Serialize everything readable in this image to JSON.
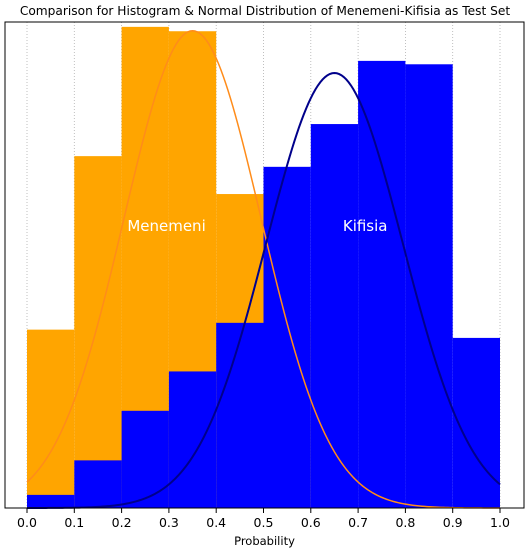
{
  "chart_data": {
    "type": "bar",
    "title": "Comparison for Histogram & Normal Distribution of Menemeni-Kifisia as Test Set",
    "xlabel": "Probability",
    "ylabel": "",
    "xlim": [
      0.0,
      1.0
    ],
    "ylim": [
      0,
      1.0
    ],
    "xticks": [
      "0.0",
      "0.1",
      "0.2",
      "0.3",
      "0.4",
      "0.5",
      "0.6",
      "0.7",
      "0.8",
      "0.9",
      "1.0"
    ],
    "grid": "vertical dotted",
    "bins": [
      [
        0.0,
        0.1
      ],
      [
        0.1,
        0.2
      ],
      [
        0.2,
        0.3
      ],
      [
        0.3,
        0.4
      ],
      [
        0.4,
        0.5
      ],
      [
        0.5,
        0.6
      ],
      [
        0.6,
        0.7
      ],
      [
        0.7,
        0.8
      ],
      [
        0.8,
        0.9
      ],
      [
        0.9,
        1.0
      ]
    ],
    "series": [
      {
        "name": "Menemeni",
        "color": "#FFA500",
        "values": [
          0.367,
          0.724,
          0.99,
          0.981,
          0.646,
          0.383,
          0.0,
          0.0,
          0.0,
          0.0
        ],
        "normal_fit": {
          "mean": 0.35,
          "std": 0.145,
          "peak": 0.982,
          "color": "#FF8C1A"
        }
      },
      {
        "name": "Kifisia",
        "color": "#0000FF",
        "values": [
          0.027,
          0.098,
          0.2,
          0.281,
          0.381,
          0.702,
          0.79,
          0.92,
          0.913,
          0.35
        ],
        "normal_fit": {
          "mean": 0.65,
          "std": 0.145,
          "peak": 0.895,
          "color": "#00008B"
        }
      }
    ],
    "annotations": [
      {
        "text": "Menemeni",
        "x": 0.295,
        "y": 0.57
      },
      {
        "text": "Kifisia",
        "x": 0.715,
        "y": 0.57
      }
    ]
  }
}
